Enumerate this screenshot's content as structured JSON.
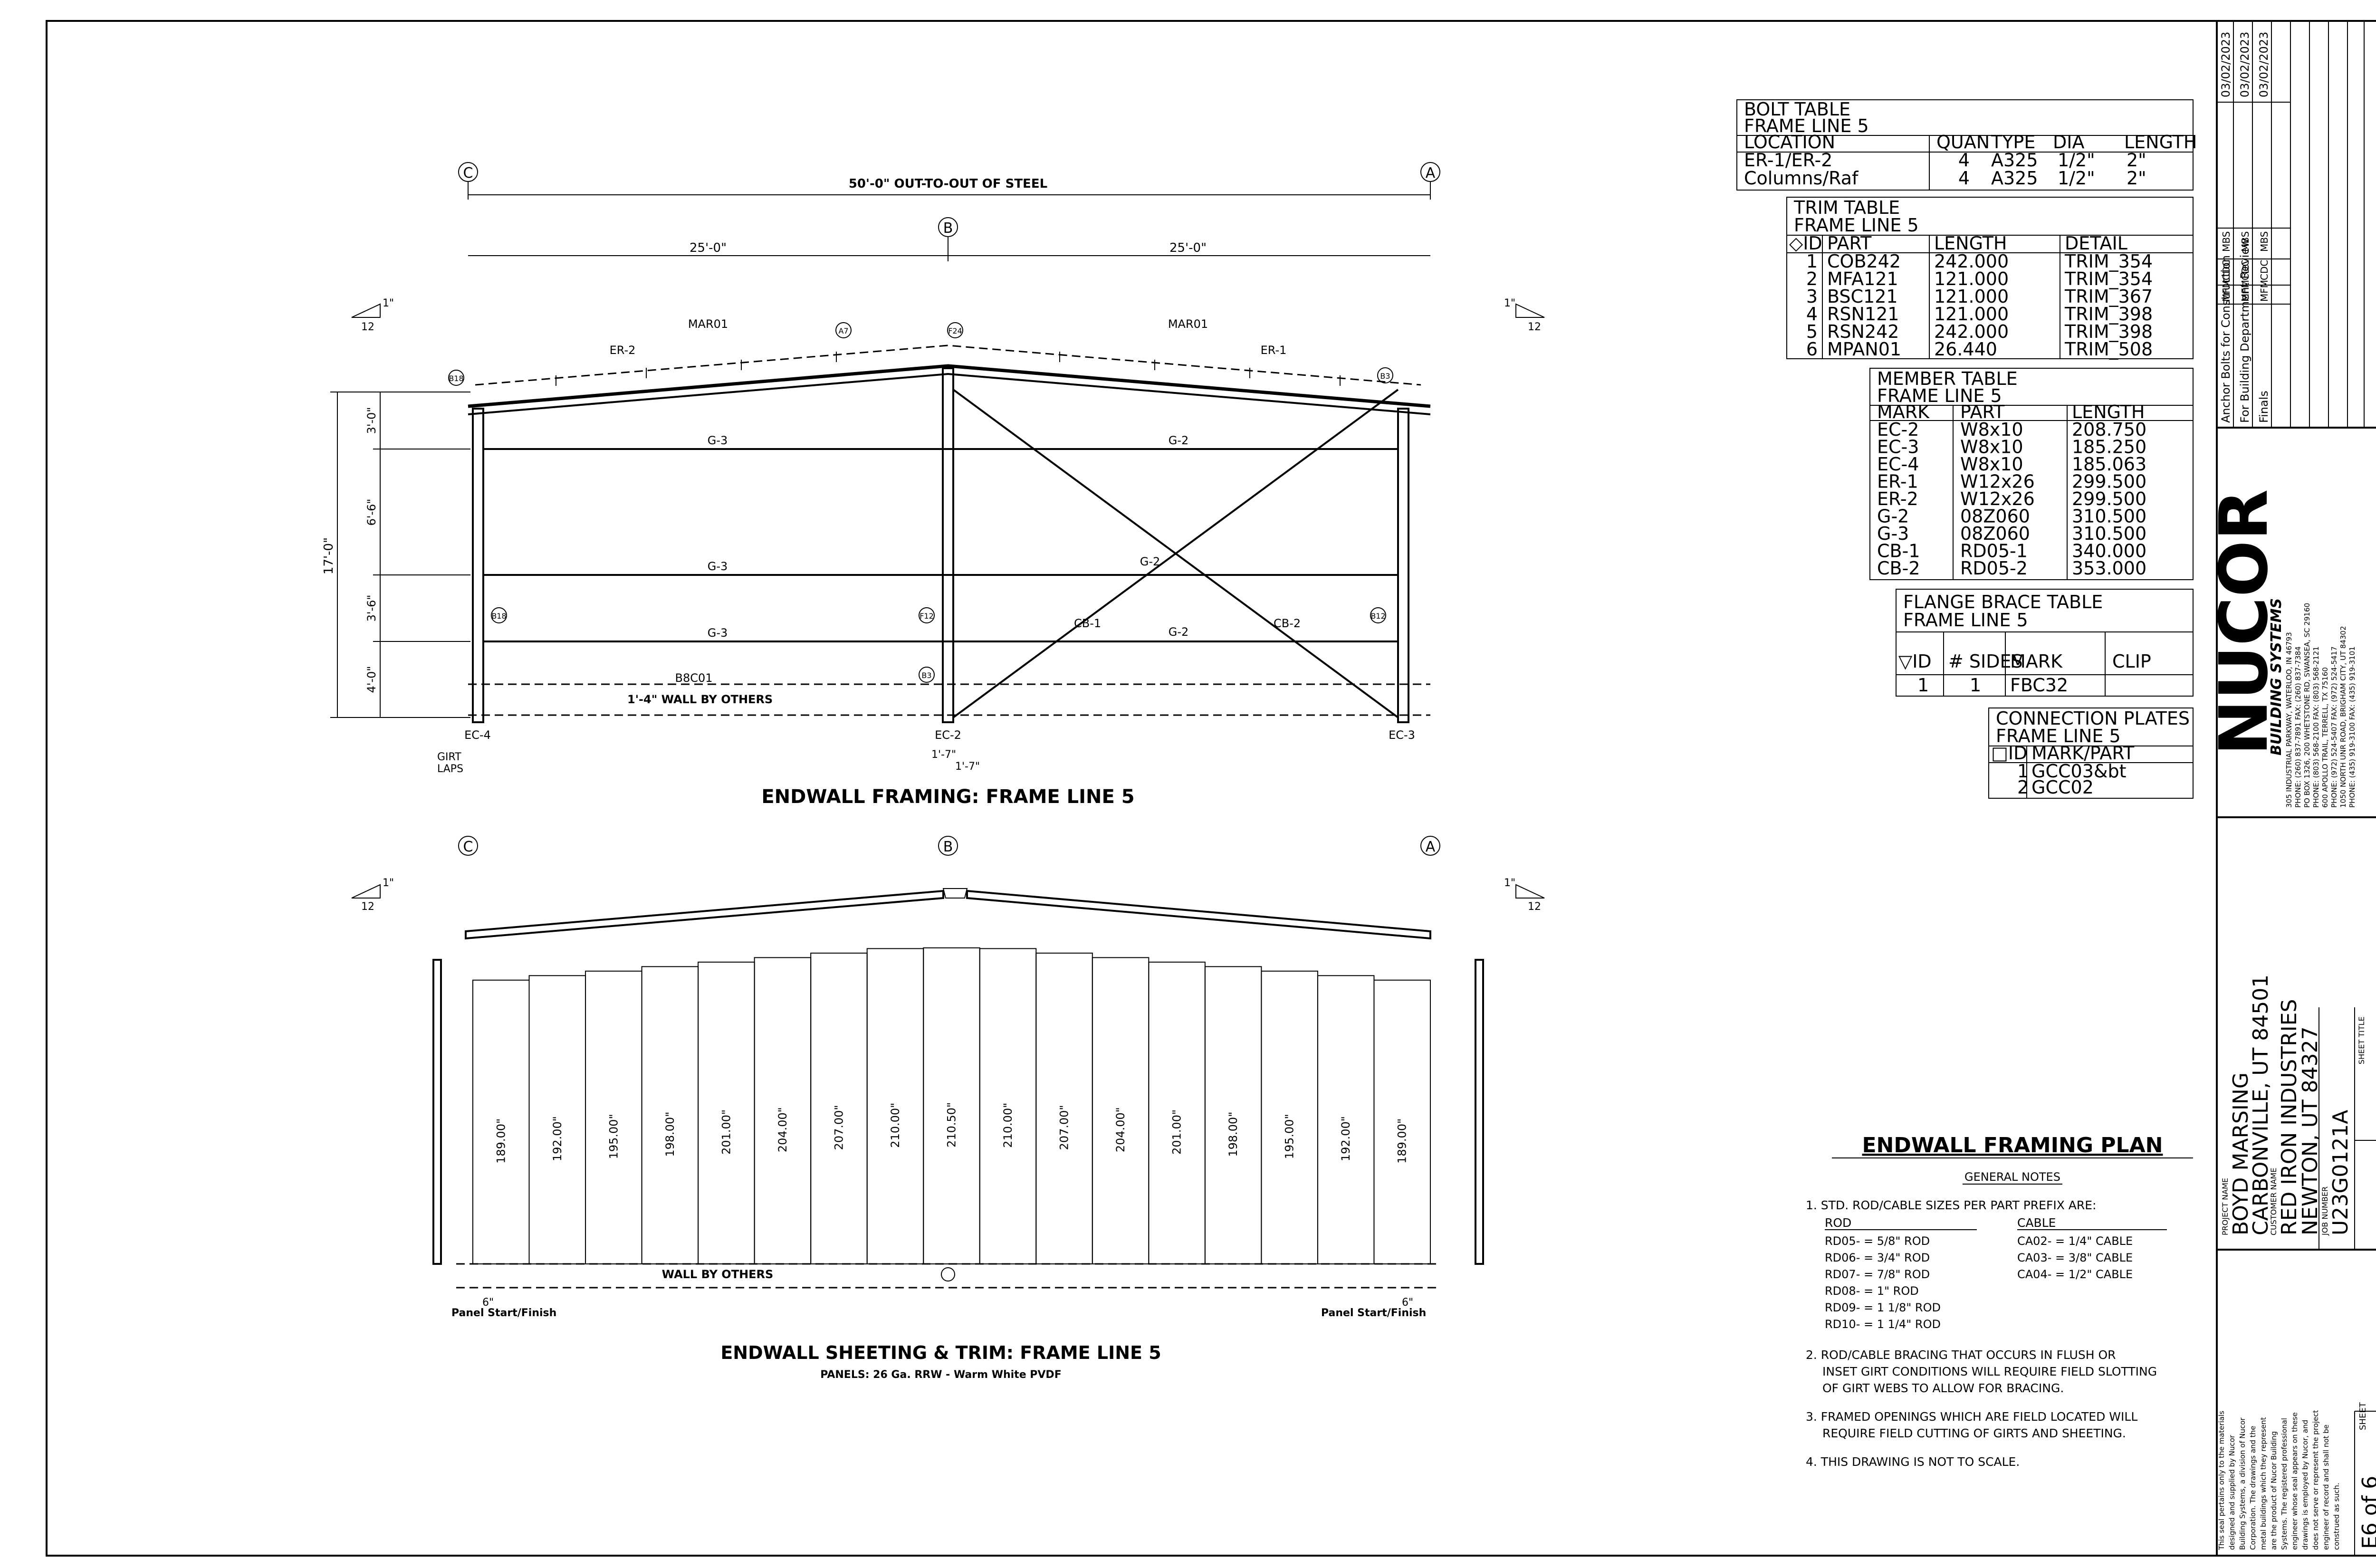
{
  "framing": {
    "title": "ENDWALL FRAMING: FRAME LINE 5",
    "grid": [
      "C",
      "B",
      "A"
    ],
    "overall_dim": "50'-0\" OUT-TO-OUT OF STEEL",
    "bay_dim": "25'-0\"",
    "slope_run": "12",
    "slope_rise": "1\"",
    "height_total": "17'-0\"",
    "height_segments": [
      "3'-0\"",
      "6'-6\"",
      "3'-6\"",
      "4'-0\""
    ],
    "rafter_marks": [
      "ER-2",
      "ER-1"
    ],
    "rafter_mar": "MAR01",
    "girt_left": [
      "G-3",
      "G-3",
      "G-3"
    ],
    "girt_right": [
      "G-2",
      "G-2",
      "G-2"
    ],
    "brace_marks": [
      "CB-1",
      "CB-2"
    ],
    "base": "B8C01",
    "wall": "1'-4\" WALL BY OTHERS",
    "columns": [
      "EC-4",
      "EC-2",
      "EC-3"
    ],
    "col_offset": "1'-7\"",
    "girt_laps": [
      "GIRT",
      "LAPS"
    ],
    "callouts": [
      "B18",
      "A7",
      "F24",
      "B3",
      "B18",
      "F12",
      "B12",
      "B3"
    ]
  },
  "sheeting": {
    "title": "ENDWALL SHEETING & TRIM: FRAME LINE 5",
    "subtitle": "PANELS: 26 Ga. RRW - Warm White PVDF",
    "panels": [
      "189.00\"",
      "192.00\"",
      "195.00\"",
      "198.00\"",
      "201.00\"",
      "204.00\"",
      "207.00\"",
      "210.00\"",
      "210.50\"",
      "210.00\"",
      "207.00\"",
      "204.00\"",
      "201.00\"",
      "198.00\"",
      "195.00\"",
      "192.00\"",
      "189.00\""
    ],
    "panel_heights": [
      189,
      192,
      195,
      198,
      201,
      204,
      207,
      210,
      210.5,
      210,
      207,
      204,
      201,
      198,
      195,
      192,
      189
    ],
    "wall": "WALL BY OTHERS",
    "panel_start": "Panel Start/Finish",
    "offset": "6\""
  },
  "bolt_table": {
    "title": "BOLT TABLE",
    "frame": "FRAME LINE 5",
    "headers": [
      "LOCATION",
      "QUAN",
      "TYPE",
      "DIA",
      "LENGTH"
    ],
    "rows": [
      [
        "ER-1/ER-2",
        "4",
        "A325",
        "1/2\"",
        "2\""
      ],
      [
        "Columns/Raf",
        "4",
        "A325",
        "1/2\"",
        "2\""
      ]
    ]
  },
  "trim_table": {
    "title": "TRIM TABLE",
    "frame": "FRAME LINE 5",
    "headers": [
      "◇ID",
      "PART",
      "LENGTH",
      "DETAIL"
    ],
    "rows": [
      [
        "1",
        "COB242",
        "242.000",
        "TRIM_354"
      ],
      [
        "2",
        "MFA121",
        "121.000",
        "TRIM_354"
      ],
      [
        "3",
        "BSC121",
        "121.000",
        "TRIM_367"
      ],
      [
        "4",
        "RSN121",
        "121.000",
        "TRIM_398"
      ],
      [
        "5",
        "RSN242",
        "242.000",
        "TRIM_398"
      ],
      [
        "6",
        "MPAN01",
        "26.440",
        "TRIM_508"
      ]
    ]
  },
  "member_table": {
    "title": "MEMBER TABLE",
    "frame": "FRAME LINE 5",
    "headers": [
      "MARK",
      "PART",
      "LENGTH"
    ],
    "rows": [
      [
        "EC-2",
        "W8x10",
        "208.750"
      ],
      [
        "EC-3",
        "W8x10",
        "185.250"
      ],
      [
        "EC-4",
        "W8x10",
        "185.063"
      ],
      [
        "ER-1",
        "W12x26",
        "299.500"
      ],
      [
        "ER-2",
        "W12x26",
        "299.500"
      ],
      [
        "G-2",
        "08Z060",
        "310.500"
      ],
      [
        "G-3",
        "08Z060",
        "310.500"
      ],
      [
        "CB-1",
        "RD05-1",
        "340.000"
      ],
      [
        "CB-2",
        "RD05-2",
        "353.000"
      ]
    ]
  },
  "flange_table": {
    "title": "FLANGE BRACE TABLE",
    "frame": "FRAME LINE 5",
    "headers": [
      "▽ID",
      "# SIDES",
      "MARK",
      "CLIP"
    ],
    "rows": [
      [
        "1",
        "1",
        "FBC32",
        ""
      ]
    ]
  },
  "plates_table": {
    "title": "CONNECTION PLATES",
    "frame": "FRAME LINE 5",
    "headers": [
      "□ID",
      "MARK/PART"
    ],
    "rows": [
      [
        "1",
        "GCC03&bt"
      ],
      [
        "2",
        "GCC02"
      ]
    ]
  },
  "notes": {
    "title": "ENDWALL FRAMING PLAN",
    "subtitle": "GENERAL NOTES",
    "note1": "1. STD. ROD/CABLE SIZES PER PART PREFIX ARE:",
    "rod_head": "ROD",
    "cable_head": "CABLE",
    "rods": [
      "RD05- = 5/8\" ROD",
      "RD06- = 3/4\" ROD",
      "RD07- = 7/8\" ROD",
      "RD08- = 1\" ROD",
      "RD09- = 1 1/8\" ROD",
      "RD10- = 1 1/4\" ROD"
    ],
    "cables": [
      "CA02- = 1/4\" CABLE",
      "CA03- = 3/8\" CABLE",
      "CA04- = 1/2\" CABLE"
    ],
    "note2": [
      "2. ROD/CABLE BRACING THAT OCCURS IN FLUSH OR",
      "INSET GIRT CONDITIONS WILL REQUIRE FIELD SLOTTING",
      "OF GIRT WEBS TO ALLOW FOR BRACING."
    ],
    "note3": [
      "3. FRAMED OPENINGS WHICH ARE FIELD LOCATED WILL",
      "REQUIRE FIELD CUTTING OF GIRTS AND SHEETING."
    ],
    "note4": "4. THIS DRAWING IS NOT TO SCALE."
  },
  "title_block": {
    "revisions": [
      {
        "desc": "Anchor Bolts for Construction",
        "by": "MBS",
        "chk": "CDC",
        "app": "MFM",
        "date": "03/02/2023"
      },
      {
        "desc": "For Building Department Review",
        "by": "MBS",
        "chk": "CDC",
        "app": "MFM",
        "date": "03/02/2023"
      },
      {
        "desc": "Finals",
        "by": "MBS",
        "chk": "CDC",
        "app": "MFM",
        "date": "03/02/2023"
      }
    ],
    "logo": "NUCOR",
    "logo_sub": "BUILDING SYSTEMS",
    "addresses": [
      "305 INDUSTRIAL PARKWAY, WATERLOO, IN 46793",
      "PHONE: (260) 837-7891  FAX: (260) 837-7384",
      "PO BOX 1326, 200 WHETSTONE RD, SWANSEA, SC 29160",
      "PHONE: (803) 568-2100  FAX: (803) 568-2121",
      "600 APOLLO TRAIL, TERRELL, TX 75160",
      "PHONE: (972) 524-5407  FAX: (972) 524-5417",
      "1050 NORTH UNR ROAD, BRIGHAM CITY, UT 84302",
      "PHONE: (435) 919-3100  FAX: (435) 919-3101"
    ],
    "project_label": "PROJECT NAME",
    "project_name": "BOYD MARSING",
    "project_city": "CARBONVILLE, UT 84501",
    "customer_label": "CUSTOMER NAME",
    "customer_name": "RED IRON INDUSTRIES",
    "customer_city": "NEWTON, UT 84327",
    "sheet_title_label": "SHEET TITLE",
    "job_label": "JOB NUMBER",
    "job_number": "U23G0121A",
    "sheet_label": "SHEET",
    "sheet": "E6 of 6",
    "disclaimer": [
      "This seal pertains only to the materials",
      "designed and supplied by Nucor",
      "Building Systems, a division of Nucor",
      "Corporation. The drawings and the",
      "metal buildings which they represent",
      "are the product of Nucor Building",
      "Systems. The registered professional",
      "engineer whose seal appears on these",
      "drawings is employed by Nucor, and",
      "does not serve or represent the project",
      "engineer of record and shall not be",
      "construed as such."
    ]
  }
}
